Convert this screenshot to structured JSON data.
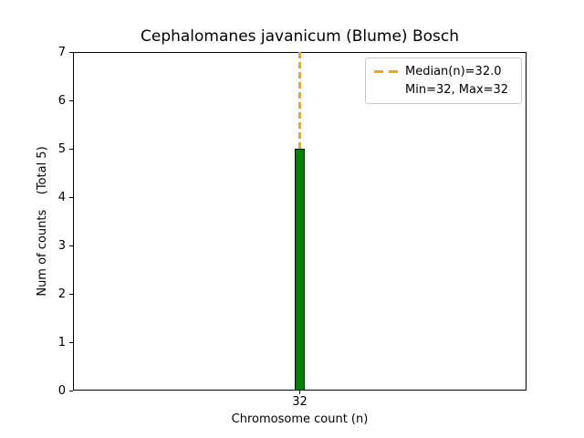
{
  "figure": {
    "title": "Cephalomanes javanicum (Blume) Bosch"
  },
  "axes": {
    "xlabel": "Chromosome count (n)",
    "ylabel_display": "Num of counts    (Total 5)",
    "xticks": [
      "32"
    ],
    "yticks": [
      "0",
      "1",
      "2",
      "3",
      "4",
      "5",
      "6",
      "7"
    ]
  },
  "legend": {
    "items": [
      {
        "label": "Median(n)=32.0",
        "marker": "orange-dashed-line"
      },
      {
        "label": "Min=32, Max=32",
        "marker": "none"
      }
    ]
  },
  "colors": {
    "bar_fill": "#008000",
    "bar_edge": "#000000",
    "median": "#FFA500",
    "legend_border": "#cccccc",
    "axis": "#000000",
    "background": "#ffffff"
  },
  "chart_data": {
    "type": "bar",
    "title": "Cephalomanes javanicum (Blume) Bosch",
    "xlabel": "Chromosome count (n)",
    "ylabel": "Num of counts (Total 5)",
    "categories": [
      "32"
    ],
    "values": [
      5
    ],
    "ylim": [
      0,
      7
    ],
    "yticks": [
      0,
      1,
      2,
      3,
      4,
      5,
      6,
      7
    ],
    "bar_color": "#008000",
    "bar_edge_color": "#000000",
    "median_line": {
      "x": 32,
      "value": 32.0,
      "color": "#FFA500",
      "style": "dashed"
    },
    "stats": {
      "median": 32.0,
      "min": 32,
      "max": 32,
      "total_counts": 5
    },
    "legend_position": "upper right",
    "grid": false
  }
}
